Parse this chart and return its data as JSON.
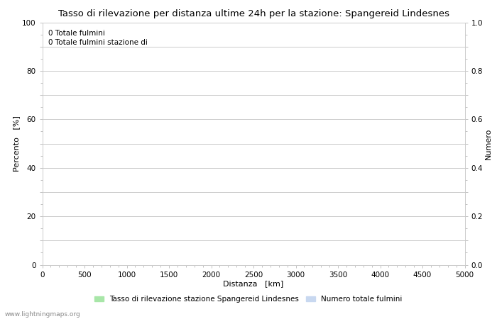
{
  "title": "Tasso di rilevazione per distanza ultime 24h per la stazione: Spangereid Lindesnes",
  "annotation_line1": "0 Totale fulmini",
  "annotation_line2": "0 Totale fulmini stazione di",
  "xlabel": "Distanza   [km]",
  "ylabel_left": "Percento   [%]",
  "ylabel_right": "Numero",
  "xlim": [
    0,
    5000
  ],
  "ylim_left": [
    0,
    100
  ],
  "ylim_right": [
    0,
    1.0
  ],
  "xticks": [
    0,
    500,
    1000,
    1500,
    2000,
    2500,
    3000,
    3500,
    4000,
    4500,
    5000
  ],
  "yticks_left": [
    0,
    10,
    20,
    30,
    40,
    50,
    60,
    70,
    80,
    90,
    100
  ],
  "yticks_right": [
    0.0,
    0.1,
    0.2,
    0.3,
    0.4,
    0.5,
    0.6,
    0.7,
    0.8,
    0.9,
    1.0
  ],
  "ytick_labels_left": [
    "0",
    "",
    "20",
    "",
    "40",
    "",
    "60",
    "",
    "80",
    "",
    "100"
  ],
  "ytick_labels_right": [
    "0.0",
    "",
    "0.2",
    "",
    "0.4",
    "",
    "0.6",
    "",
    "0.8",
    "",
    "1.0"
  ],
  "legend_label_green": "Tasso di rilevazione stazione Spangereid Lindesnes",
  "legend_label_blue": "Numero totale fulmini",
  "legend_color_green": "#a8e6a8",
  "legend_color_blue": "#c8d8f0",
  "grid_color": "#cccccc",
  "background_color": "#ffffff",
  "title_fontsize": 9.5,
  "axis_label_fontsize": 8,
  "tick_fontsize": 7.5,
  "annotation_fontsize": 7.5,
  "legend_fontsize": 7.5,
  "watermark": "www.lightningmaps.org"
}
